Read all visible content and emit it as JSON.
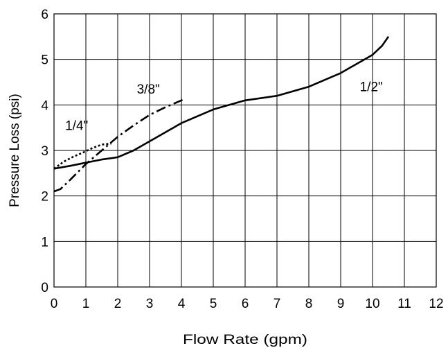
{
  "chart_data": {
    "type": "line",
    "xlabel": "Flow Rate (gpm)",
    "ylabel": "Pressure  Loss (psi)",
    "xlim": [
      0,
      12
    ],
    "ylim": [
      0,
      6
    ],
    "xticks": [
      "0",
      "1",
      "2",
      "3",
      "4",
      "5",
      "6",
      "7",
      "8",
      "9",
      "10",
      "11",
      "12"
    ],
    "yticks": [
      "0",
      "1",
      "2",
      "3",
      "4",
      "5",
      "6"
    ],
    "grid": true,
    "legend": "none",
    "series": [
      {
        "name": "1/2\"",
        "style": "solid",
        "label_at": [
          9.6,
          4.3
        ],
        "x": [
          0,
          0.5,
          1.0,
          1.5,
          1.8,
          2.0,
          2.5,
          3.0,
          4.0,
          5.0,
          6.0,
          7.0,
          8.0,
          9.0,
          9.5,
          10.0,
          10.3,
          10.5
        ],
        "y": [
          2.6,
          2.66,
          2.73,
          2.8,
          2.83,
          2.85,
          3.0,
          3.2,
          3.6,
          3.9,
          4.1,
          4.2,
          4.4,
          4.7,
          4.9,
          5.1,
          5.3,
          5.5
        ]
      },
      {
        "name": "3/8\"",
        "style": "dashdot",
        "label_at": [
          2.6,
          4.25
        ],
        "x": [
          0,
          0.2,
          0.5,
          1.0,
          1.5,
          2.0,
          2.5,
          3.0,
          3.5,
          4.0,
          4.1
        ],
        "y": [
          2.1,
          2.15,
          2.35,
          2.7,
          3.0,
          3.3,
          3.55,
          3.78,
          3.95,
          4.1,
          4.15
        ]
      },
      {
        "name": "1/4\"",
        "style": "dotted",
        "label_at": [
          0.35,
          3.45
        ],
        "x": [
          0,
          0.3,
          0.6,
          0.9,
          1.2,
          1.5,
          1.8
        ],
        "y": [
          2.6,
          2.75,
          2.86,
          2.95,
          3.05,
          3.13,
          3.15
        ]
      }
    ]
  }
}
